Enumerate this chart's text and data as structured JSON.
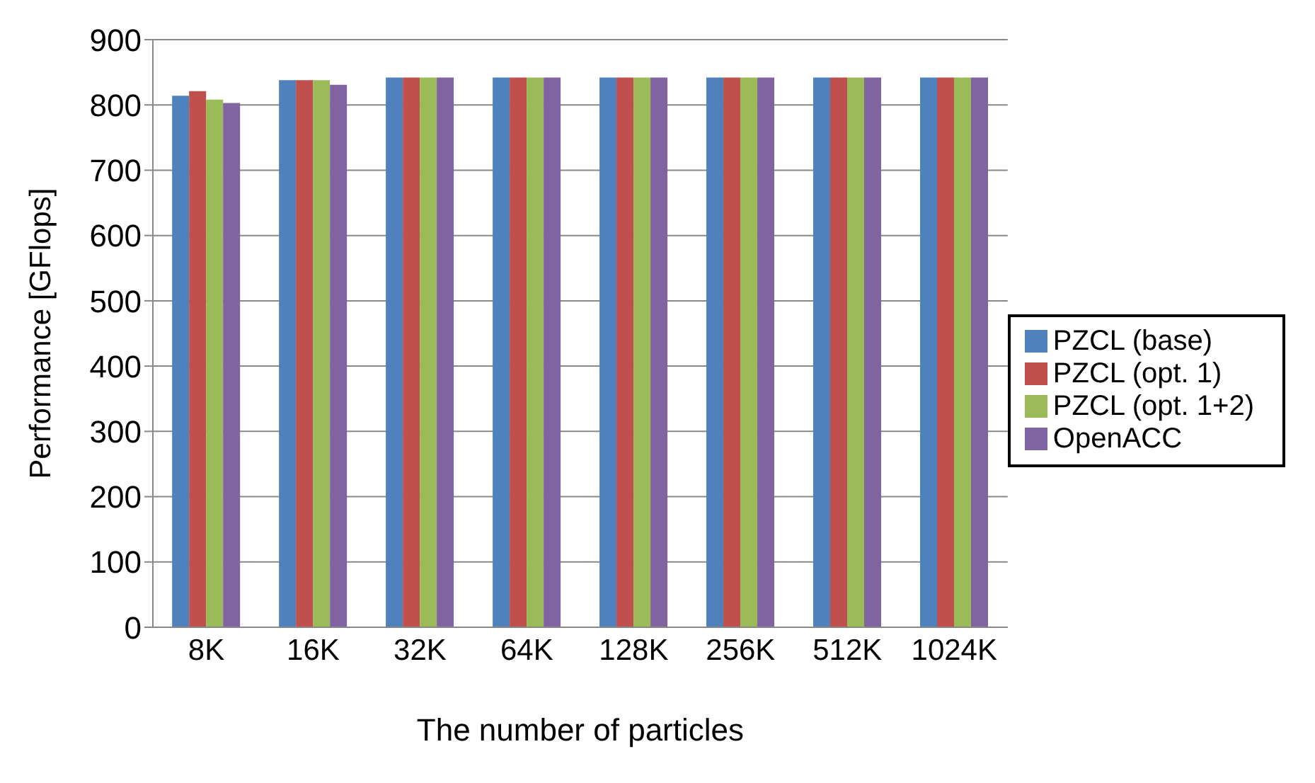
{
  "chart_data": {
    "type": "bar",
    "xlabel": "The number of particles",
    "ylabel": "Performance [GFlops]",
    "categories": [
      "8K",
      "16K",
      "32K",
      "64K",
      "128K",
      "256K",
      "512K",
      "1024K"
    ],
    "series": [
      {
        "name": "PZCL (base)",
        "color": "#4f81bd",
        "values": [
          814,
          838,
          842,
          842,
          842,
          842,
          842,
          842
        ]
      },
      {
        "name": "PZCL (opt. 1)",
        "color": "#c0504d",
        "values": [
          821,
          838,
          842,
          842,
          842,
          842,
          842,
          842
        ]
      },
      {
        "name": "PZCL (opt. 1+2)",
        "color": "#9bbb59",
        "values": [
          808,
          838,
          842,
          842,
          842,
          842,
          842,
          842
        ]
      },
      {
        "name": "OpenACC",
        "color": "#8064a2",
        "values": [
          803,
          831,
          842,
          842,
          842,
          842,
          842,
          842
        ]
      }
    ],
    "ylim": [
      0,
      900
    ],
    "yticks": [
      0,
      100,
      200,
      300,
      400,
      500,
      600,
      700,
      800,
      900
    ],
    "grid": "y",
    "legend": "right"
  }
}
